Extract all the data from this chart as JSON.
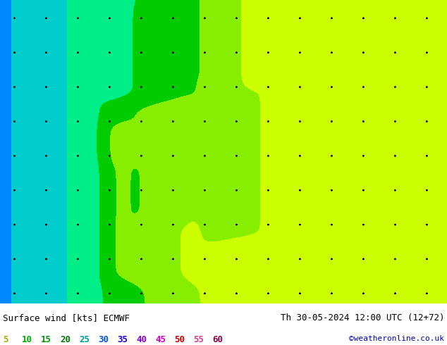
{
  "title_left": "Surface wind [kts] ECMWF",
  "title_right": "Th 30-05-2024 12:00 UTC (12+72)",
  "credit": "©weatheronline.co.uk",
  "colorbar_values": [
    5,
    10,
    15,
    20,
    25,
    30,
    35,
    40,
    45,
    50,
    55,
    60
  ],
  "colorbar_colors_legend": [
    "#cccc00",
    "#00bb00",
    "#00cc00",
    "#00aa44",
    "#00aacc",
    "#0044ff",
    "#2233ee",
    "#9900ff",
    "#ff44ff",
    "#ff2222",
    "#ff66aa",
    "#cc0055"
  ],
  "wind_fill_colors": [
    "#ffff00",
    "#ccff00",
    "#66ff00",
    "#00dd00",
    "#00ffcc",
    "#00ccff",
    "#0088ff",
    "#0000ff",
    "#ff00ff",
    "#ff0088",
    "#ff0000",
    "#880000"
  ],
  "wind_levels": [
    0,
    5,
    10,
    15,
    20,
    25,
    30,
    35,
    40,
    45,
    50,
    55,
    60
  ],
  "map_lon_min": -11,
  "map_lon_max": 20,
  "map_lat_min": 43,
  "map_lat_max": 58,
  "bg_color": "#ffffff",
  "border_color": "#555555",
  "sea_color": "#aaddff",
  "fig_width": 6.34,
  "fig_height": 4.9,
  "dpi": 100
}
